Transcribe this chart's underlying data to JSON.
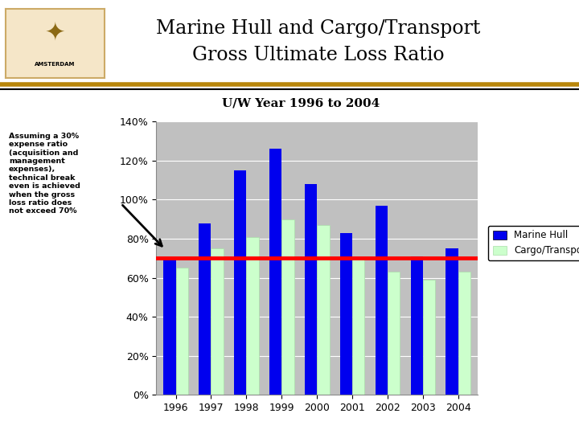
{
  "title_line1": "Marine Hull and Cargo/Transport",
  "title_line2": "Gross Ultimate Loss Ratio",
  "subtitle": "U/W Year 1996 to 2004",
  "years": [
    1996,
    1997,
    1998,
    1999,
    2000,
    2001,
    2002,
    2003,
    2004
  ],
  "marine_hull": [
    0.7,
    0.88,
    1.15,
    1.26,
    1.08,
    0.83,
    0.97,
    0.71,
    0.75
  ],
  "cargo_transport": [
    0.65,
    0.75,
    0.81,
    0.9,
    0.87,
    0.7,
    0.63,
    0.59,
    0.63
  ],
  "marine_hull_color": "#0000EE",
  "cargo_transport_color": "#CCFFCC",
  "cargo_transport_edge": "#AADDAA",
  "red_line_y": 0.7,
  "red_line_color": "#FF0000",
  "ylim": [
    0,
    1.4
  ],
  "yticks": [
    0.0,
    0.2,
    0.4,
    0.6,
    0.8,
    1.0,
    1.2,
    1.4
  ],
  "ytick_labels": [
    "0%",
    "20%",
    "40%",
    "60%",
    "80%",
    "100%",
    "120%",
    "140%"
  ],
  "bar_width": 0.35,
  "plot_bg_color": "#C0C0C0",
  "fig_bg_color": "#FFFFFF",
  "header_bg_color": "#FFFFFF",
  "header_line1_color": "#B8860B",
  "header_line2_color": "#000000",
  "annotation_text": "Assuming a 30%\nexpense ratio\n(acquisition and\nmanagement\nexpenses),\ntechnical break\neven is achieved\nwhen the gross\nloss ratio does\nnot exceed 70%",
  "legend_entries": [
    "Marine Hull",
    "Cargo/Transport"
  ]
}
